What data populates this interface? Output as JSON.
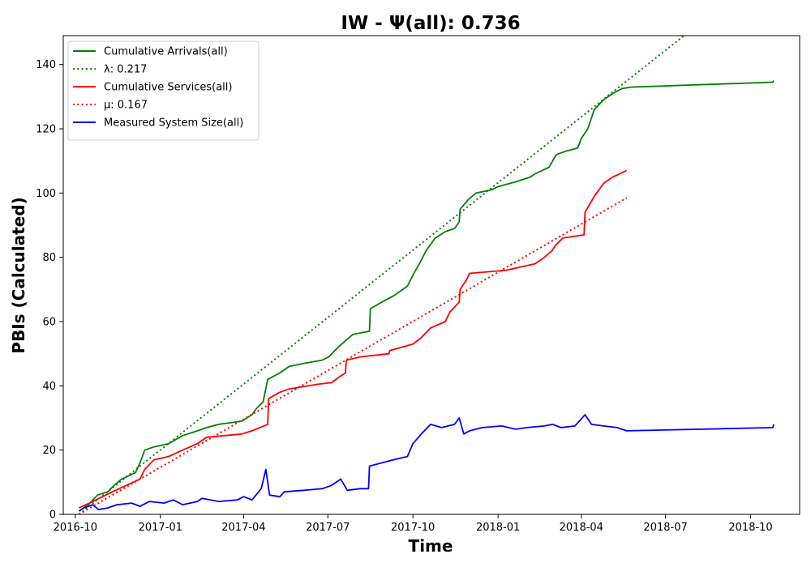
{
  "chart_data": {
    "type": "line",
    "title": "IW -  Ψ(all): 0.736",
    "xlabel": "Time",
    "ylabel": "PBIs (Calculated)",
    "x_axis": "date",
    "xlim": [
      "2016-09-18",
      "2018-11-23"
    ],
    "ylim": [
      0,
      149
    ],
    "x_ticks": [
      {
        "date": "2016-10-01",
        "label": "2016-10"
      },
      {
        "date": "2017-01-01",
        "label": "2017-01"
      },
      {
        "date": "2017-04-01",
        "label": "2017-04"
      },
      {
        "date": "2017-07-01",
        "label": "2017-07"
      },
      {
        "date": "2017-10-01",
        "label": "2017-10"
      },
      {
        "date": "2018-01-01",
        "label": "2018-01"
      },
      {
        "date": "2018-04-01",
        "label": "2018-04"
      },
      {
        "date": "2018-07-01",
        "label": "2018-07"
      },
      {
        "date": "2018-10-01",
        "label": "2018-10"
      }
    ],
    "y_ticks": [
      0,
      20,
      40,
      60,
      80,
      100,
      120,
      140
    ],
    "legend_position": "top-left",
    "grid": false,
    "series": [
      {
        "name": "Cumulative Arrivals(all)",
        "style": "solid",
        "color": "#008000",
        "points": [
          [
            "2016-10-05",
            1
          ],
          [
            "2016-10-15",
            3
          ],
          [
            "2016-10-25",
            6
          ],
          [
            "2016-11-05",
            7
          ],
          [
            "2016-11-12",
            9
          ],
          [
            "2016-11-20",
            11
          ],
          [
            "2016-12-05",
            13
          ],
          [
            "2016-12-10",
            16
          ],
          [
            "2016-12-15",
            20
          ],
          [
            "2016-12-25",
            21
          ],
          [
            "2017-01-10",
            22
          ],
          [
            "2017-01-25",
            24.5
          ],
          [
            "2017-02-10",
            26
          ],
          [
            "2017-02-20",
            27
          ],
          [
            "2017-03-05",
            28
          ],
          [
            "2017-03-30",
            29
          ],
          [
            "2017-04-10",
            31
          ],
          [
            "2017-04-15",
            33
          ],
          [
            "2017-04-22",
            35
          ],
          [
            "2017-04-27",
            42
          ],
          [
            "2017-05-10",
            44
          ],
          [
            "2017-05-20",
            46
          ],
          [
            "2017-06-05",
            47
          ],
          [
            "2017-06-25",
            48
          ],
          [
            "2017-07-02",
            49
          ],
          [
            "2017-07-12",
            52
          ],
          [
            "2017-07-20",
            54
          ],
          [
            "2017-07-28",
            56
          ],
          [
            "2017-08-15",
            57
          ],
          [
            "2017-08-16",
            64
          ],
          [
            "2017-08-28",
            66
          ],
          [
            "2017-09-10",
            68
          ],
          [
            "2017-09-25",
            71
          ],
          [
            "2017-10-02",
            75
          ],
          [
            "2017-10-08",
            78
          ],
          [
            "2017-10-15",
            82
          ],
          [
            "2017-10-25",
            86
          ],
          [
            "2017-11-05",
            88
          ],
          [
            "2017-11-15",
            89
          ],
          [
            "2017-11-20",
            91
          ],
          [
            "2017-11-21",
            95
          ],
          [
            "2017-11-30",
            98
          ],
          [
            "2017-12-08",
            100
          ],
          [
            "2017-12-25",
            101
          ],
          [
            "2018-01-01",
            102
          ],
          [
            "2018-01-20",
            103.5
          ],
          [
            "2018-02-05",
            105
          ],
          [
            "2018-02-10",
            106
          ],
          [
            "2018-02-25",
            108
          ],
          [
            "2018-03-05",
            112
          ],
          [
            "2018-03-15",
            113
          ],
          [
            "2018-03-28",
            114
          ],
          [
            "2018-04-01",
            117
          ],
          [
            "2018-04-08",
            120
          ],
          [
            "2018-04-15",
            126
          ],
          [
            "2018-04-25",
            129
          ],
          [
            "2018-05-05",
            131
          ],
          [
            "2018-05-15",
            132.5
          ],
          [
            "2018-05-25",
            133
          ],
          [
            "2018-10-25",
            134.5
          ],
          [
            "2018-10-26",
            135
          ]
        ]
      },
      {
        "name": "λ: 0.217",
        "style": "dotted",
        "color": "#008000",
        "points": [
          [
            "2016-10-05",
            0
          ],
          [
            "2018-07-21",
            149
          ]
        ]
      },
      {
        "name": "Cumulative Services(all)",
        "style": "solid",
        "color": "#ff0000",
        "points": [
          [
            "2016-10-05",
            2
          ],
          [
            "2016-10-20",
            4
          ],
          [
            "2016-11-10",
            7
          ],
          [
            "2016-11-25",
            9
          ],
          [
            "2016-12-10",
            11
          ],
          [
            "2016-12-15",
            14
          ],
          [
            "2016-12-25",
            17
          ],
          [
            "2017-01-10",
            18
          ],
          [
            "2017-01-25",
            20
          ],
          [
            "2017-02-10",
            22
          ],
          [
            "2017-02-20",
            24
          ],
          [
            "2017-03-30",
            25
          ],
          [
            "2017-04-10",
            26
          ],
          [
            "2017-04-27",
            28
          ],
          [
            "2017-04-28",
            36
          ],
          [
            "2017-05-10",
            38
          ],
          [
            "2017-05-20",
            39
          ],
          [
            "2017-06-20",
            40.5
          ],
          [
            "2017-07-05",
            41
          ],
          [
            "2017-07-12",
            42.5
          ],
          [
            "2017-07-20",
            44
          ],
          [
            "2017-07-21",
            48
          ],
          [
            "2017-08-05",
            49
          ],
          [
            "2017-09-05",
            50
          ],
          [
            "2017-09-06",
            51
          ],
          [
            "2017-10-01",
            53
          ],
          [
            "2017-10-10",
            55
          ],
          [
            "2017-10-20",
            58
          ],
          [
            "2017-11-05",
            60
          ],
          [
            "2017-11-10",
            63
          ],
          [
            "2017-11-20",
            66
          ],
          [
            "2017-11-21",
            70
          ],
          [
            "2017-11-28",
            73
          ],
          [
            "2017-12-01",
            75
          ],
          [
            "2018-01-10",
            76
          ],
          [
            "2018-02-10",
            78
          ],
          [
            "2018-02-20",
            80
          ],
          [
            "2018-02-28",
            82
          ],
          [
            "2018-03-05",
            84
          ],
          [
            "2018-03-12",
            86
          ],
          [
            "2018-04-04",
            87
          ],
          [
            "2018-04-05",
            94
          ],
          [
            "2018-04-15",
            99
          ],
          [
            "2018-04-25",
            103
          ],
          [
            "2018-05-05",
            105
          ],
          [
            "2018-05-20",
            107
          ]
        ]
      },
      {
        "name": "μ: 0.167",
        "style": "dotted",
        "color": "#ff0000",
        "points": [
          [
            "2016-10-05",
            0
          ],
          [
            "2018-05-20",
            98.5
          ]
        ]
      },
      {
        "name": "Measured System Size(all)",
        "style": "solid",
        "color": "#0000ff",
        "points": [
          [
            "2016-10-05",
            1
          ],
          [
            "2016-10-10",
            2
          ],
          [
            "2016-10-20",
            3
          ],
          [
            "2016-10-26",
            1.5
          ],
          [
            "2016-11-05",
            2
          ],
          [
            "2016-11-15",
            3
          ],
          [
            "2016-12-01",
            3.5
          ],
          [
            "2016-12-10",
            2.5
          ],
          [
            "2016-12-20",
            4
          ],
          [
            "2017-01-05",
            3.5
          ],
          [
            "2017-01-15",
            4.5
          ],
          [
            "2017-01-25",
            3
          ],
          [
            "2017-02-10",
            4
          ],
          [
            "2017-02-15",
            5
          ],
          [
            "2017-03-05",
            4
          ],
          [
            "2017-03-25",
            4.5
          ],
          [
            "2017-04-01",
            5.5
          ],
          [
            "2017-04-10",
            4.5
          ],
          [
            "2017-04-20",
            8
          ],
          [
            "2017-04-25",
            14
          ],
          [
            "2017-04-29",
            6
          ],
          [
            "2017-05-10",
            5.5
          ],
          [
            "2017-05-15",
            7
          ],
          [
            "2017-06-05",
            7.5
          ],
          [
            "2017-06-25",
            8
          ],
          [
            "2017-07-05",
            9
          ],
          [
            "2017-07-15",
            11
          ],
          [
            "2017-07-22",
            7.5
          ],
          [
            "2017-08-05",
            8
          ],
          [
            "2017-08-14",
            8
          ],
          [
            "2017-08-15",
            15
          ],
          [
            "2017-08-28",
            16
          ],
          [
            "2017-09-10",
            17
          ],
          [
            "2017-09-25",
            18
          ],
          [
            "2017-10-01",
            22
          ],
          [
            "2017-10-10",
            25
          ],
          [
            "2017-10-20",
            28
          ],
          [
            "2017-11-01",
            27
          ],
          [
            "2017-11-15",
            28
          ],
          [
            "2017-11-20",
            30
          ],
          [
            "2017-11-25",
            25
          ],
          [
            "2017-12-01",
            26
          ],
          [
            "2017-12-15",
            27
          ],
          [
            "2018-01-05",
            27.5
          ],
          [
            "2018-01-20",
            26.5
          ],
          [
            "2018-02-01",
            27
          ],
          [
            "2018-02-20",
            27.5
          ],
          [
            "2018-03-01",
            28
          ],
          [
            "2018-03-10",
            27
          ],
          [
            "2018-03-25",
            27.5
          ],
          [
            "2018-04-05",
            31
          ],
          [
            "2018-04-12",
            28
          ],
          [
            "2018-04-25",
            27.5
          ],
          [
            "2018-05-10",
            27
          ],
          [
            "2018-05-20",
            26
          ],
          [
            "2018-10-25",
            27
          ],
          [
            "2018-10-26",
            28
          ]
        ]
      }
    ]
  }
}
